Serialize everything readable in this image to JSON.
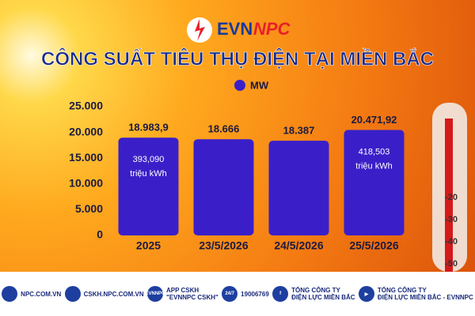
{
  "brand": {
    "left": "EVN",
    "right": "NPC"
  },
  "chart_data": {
    "type": "bar",
    "title": "CÔNG SUẤT TIÊU THỤ ĐIỆN TẠI MIỀN BẮC",
    "categories": [
      "2025",
      "23/5/2026",
      "24/5/2026",
      "25/5/2026"
    ],
    "series": [
      {
        "name": "MW",
        "color": "#3a1fc9",
        "values": [
          18983.9,
          18666,
          18387,
          20471.92
        ],
        "value_labels": [
          "18.983,9",
          "18.666",
          "18.387",
          "20.471,92"
        ]
      }
    ],
    "bar_notes": [
      [
        "393,090",
        "triệu kWh"
      ],
      null,
      null,
      [
        "418,503",
        "triệu kWh"
      ]
    ],
    "ylim": [
      0,
      25000
    ],
    "yticks": [
      0,
      {
        "value": 5000,
        "label": "5.000"
      },
      {
        "value": 10000,
        "label": "10.000"
      },
      {
        "value": 15000,
        "label": "15.000"
      },
      {
        "value": 20000,
        "label": "20.000"
      },
      {
        "value": 25000,
        "label": "25.000"
      }
    ],
    "grid": false
  },
  "thermometer": [
    "-20",
    "-30",
    "-40",
    "-50"
  ],
  "footer": [
    {
      "icon": "",
      "lines": [
        "NPC.COM.VN"
      ]
    },
    {
      "icon": "",
      "lines": [
        "CSKH.NPC.COM.VN"
      ]
    },
    {
      "icon": "EVNNPC",
      "lines": [
        "APP CSKH",
        "\"EVNNPC CSKH\""
      ]
    },
    {
      "icon": "24/7",
      "lines": [
        "19006769"
      ]
    },
    {
      "icon": "f",
      "lines": [
        "TỔNG CÔNG TY",
        "ĐIỆN LỰC MIỀN BẮC"
      ]
    },
    {
      "icon": "▶",
      "lines": [
        "TỔNG CÔNG TY",
        "ĐIỆN LỰC MIỀN BẮC - EVNNPC"
      ]
    }
  ]
}
